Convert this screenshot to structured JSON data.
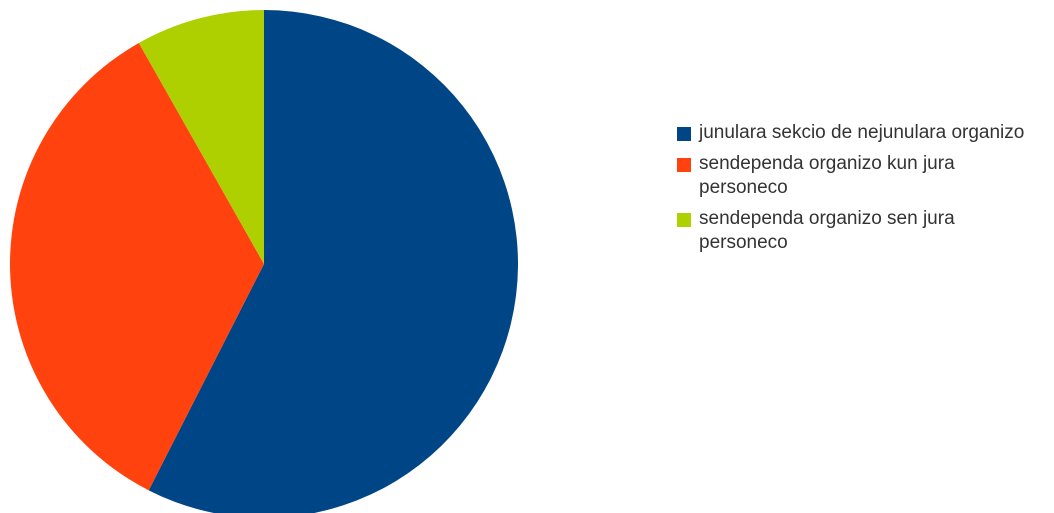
{
  "chart_data": {
    "type": "pie",
    "title": "",
    "start_angle_deg": 0,
    "direction": "clockwise",
    "legend_position": "right",
    "slices": [
      {
        "label": "junulara sekcio de nejunulara organizo",
        "value": 57.5,
        "color": "#004586"
      },
      {
        "label": "sendependa organizo kun jura personeco",
        "value": 34.3,
        "color": "#ff420e"
      },
      {
        "label": "sendependa organizo sen jura personeco",
        "value": 8.2,
        "color": "#aecf00"
      }
    ]
  },
  "legend": {
    "items": [
      {
        "label": "junulara sekcio de nejunulara organizo",
        "color": "#004586"
      },
      {
        "label": "sendependa organizo kun jura personeco",
        "color": "#ff420e"
      },
      {
        "label": "sendependa organizo sen jura personeco",
        "color": "#aecf00"
      }
    ]
  }
}
